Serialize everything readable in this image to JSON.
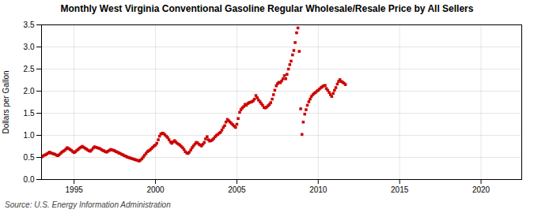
{
  "chart_data": {
    "type": "scatter",
    "title": "Monthly West Virginia Conventional Gasoline Regular Wholesale/Resale Price by All Sellers",
    "ylabel": "Dollars per Gallon",
    "source": "Source: U.S. Energy Information Administration",
    "color": "#cc0000",
    "marker": "square",
    "grid": true,
    "xlim": [
      1993.0,
      2022.5
    ],
    "ylim": [
      0.0,
      3.5
    ],
    "xticks": [
      1995,
      2000,
      2005,
      2010,
      2015,
      2020
    ],
    "yticks": [
      {
        "value": 0.0,
        "label": "0.0"
      },
      0.5,
      {
        "value": 1.0,
        "label": "1.0"
      },
      1.5,
      {
        "value": 2.0,
        "label": "2.0"
      },
      2.5,
      {
        "value": 3.0,
        "label": "3.0"
      },
      3.5
    ],
    "x": [
      1993.0,
      1993.08,
      1993.17,
      1993.25,
      1993.33,
      1993.42,
      1993.5,
      1993.58,
      1993.67,
      1993.75,
      1993.83,
      1993.92,
      1994.0,
      1994.08,
      1994.17,
      1994.25,
      1994.33,
      1994.42,
      1994.5,
      1994.58,
      1994.67,
      1994.75,
      1994.83,
      1994.92,
      1995.0,
      1995.08,
      1995.17,
      1995.25,
      1995.33,
      1995.42,
      1995.5,
      1995.58,
      1995.67,
      1995.75,
      1995.83,
      1995.92,
      1996.0,
      1996.08,
      1996.17,
      1996.25,
      1996.33,
      1996.42,
      1996.5,
      1996.58,
      1996.67,
      1996.75,
      1996.83,
      1996.92,
      1997.0,
      1997.08,
      1997.17,
      1997.25,
      1997.33,
      1997.42,
      1997.5,
      1997.58,
      1997.67,
      1997.75,
      1997.83,
      1997.92,
      1998.0,
      1998.08,
      1998.17,
      1998.25,
      1998.33,
      1998.42,
      1998.5,
      1998.58,
      1998.67,
      1998.75,
      1998.83,
      1998.92,
      1999.0,
      1999.08,
      1999.17,
      1999.25,
      1999.33,
      1999.42,
      1999.5,
      1999.58,
      1999.67,
      1999.75,
      1999.83,
      1999.92,
      2000.0,
      2000.08,
      2000.17,
      2000.25,
      2000.33,
      2000.42,
      2000.5,
      2000.58,
      2000.67,
      2000.75,
      2000.83,
      2000.92,
      2001.0,
      2001.08,
      2001.17,
      2001.25,
      2001.33,
      2001.42,
      2001.5,
      2001.58,
      2001.67,
      2001.75,
      2001.83,
      2001.92,
      2002.0,
      2002.08,
      2002.17,
      2002.25,
      2002.33,
      2002.42,
      2002.5,
      2002.58,
      2002.67,
      2002.75,
      2002.83,
      2002.92,
      2003.0,
      2003.08,
      2003.17,
      2003.25,
      2003.33,
      2003.42,
      2003.5,
      2003.58,
      2003.67,
      2003.75,
      2003.83,
      2003.92,
      2004.0,
      2004.08,
      2004.17,
      2004.25,
      2004.33,
      2004.42,
      2004.5,
      2004.58,
      2004.67,
      2004.75,
      2004.83,
      2004.92,
      2005.0,
      2005.08,
      2005.17,
      2005.25,
      2005.33,
      2005.42,
      2005.5,
      2005.58,
      2005.67,
      2005.75,
      2005.83,
      2005.92,
      2006.0,
      2006.08,
      2006.17,
      2006.25,
      2006.33,
      2006.42,
      2006.5,
      2006.58,
      2006.67,
      2006.75,
      2006.83,
      2006.92,
      2007.0,
      2007.08,
      2007.17,
      2007.25,
      2007.33,
      2007.42,
      2007.5,
      2007.58,
      2007.67,
      2007.75,
      2007.83,
      2007.92,
      2008.0,
      2008.08,
      2008.17,
      2008.25,
      2008.33,
      2008.42,
      2008.5,
      2008.58,
      2008.67,
      2008.75,
      2008.83,
      2008.92,
      2009.0,
      2009.08,
      2009.17,
      2009.25,
      2009.33,
      2009.42,
      2009.5,
      2009.58,
      2009.67,
      2009.75,
      2009.83,
      2009.92,
      2010.0,
      2010.08,
      2010.17,
      2010.25,
      2010.33,
      2010.42,
      2010.5,
      2010.58,
      2010.67,
      2010.75,
      2010.83,
      2010.92,
      2011.0,
      2011.08,
      2011.17,
      2011.25,
      2011.33,
      2011.42,
      2011.5,
      2011.58,
      2011.67
    ],
    "values": [
      0.51,
      0.53,
      0.55,
      0.56,
      0.58,
      0.6,
      0.62,
      0.6,
      0.59,
      0.58,
      0.57,
      0.55,
      0.54,
      0.56,
      0.59,
      0.62,
      0.64,
      0.66,
      0.69,
      0.72,
      0.7,
      0.68,
      0.66,
      0.63,
      0.61,
      0.63,
      0.66,
      0.68,
      0.71,
      0.73,
      0.75,
      0.73,
      0.71,
      0.69,
      0.67,
      0.65,
      0.64,
      0.67,
      0.71,
      0.74,
      0.73,
      0.72,
      0.71,
      0.7,
      0.68,
      0.66,
      0.65,
      0.63,
      0.62,
      0.64,
      0.66,
      0.68,
      0.67,
      0.66,
      0.65,
      0.63,
      0.62,
      0.6,
      0.59,
      0.57,
      0.56,
      0.54,
      0.53,
      0.51,
      0.5,
      0.49,
      0.48,
      0.47,
      0.46,
      0.45,
      0.44,
      0.43,
      0.42,
      0.44,
      0.47,
      0.51,
      0.55,
      0.59,
      0.63,
      0.65,
      0.67,
      0.7,
      0.73,
      0.76,
      0.78,
      0.82,
      0.9,
      0.98,
      1.03,
      1.05,
      1.04,
      1.01,
      0.98,
      0.95,
      0.9,
      0.85,
      0.82,
      0.85,
      0.88,
      0.85,
      0.82,
      0.8,
      0.78,
      0.75,
      0.72,
      0.68,
      0.63,
      0.6,
      0.59,
      0.62,
      0.67,
      0.72,
      0.76,
      0.8,
      0.84,
      0.83,
      0.8,
      0.78,
      0.76,
      0.8,
      0.84,
      0.92,
      0.97,
      0.9,
      0.87,
      0.88,
      0.9,
      0.93,
      0.97,
      1.0,
      1.02,
      1.05,
      1.07,
      1.12,
      1.18,
      1.22,
      1.3,
      1.36,
      1.33,
      1.3,
      1.27,
      1.24,
      1.21,
      1.18,
      1.25,
      1.38,
      1.52,
      1.58,
      1.62,
      1.65,
      1.7,
      1.68,
      1.72,
      1.74,
      1.75,
      1.76,
      1.78,
      1.82,
      1.9,
      1.85,
      1.8,
      1.76,
      1.72,
      1.68,
      1.63,
      1.62,
      1.64,
      1.67,
      1.7,
      1.74,
      1.82,
      1.92,
      2.02,
      2.12,
      2.17,
      2.2,
      2.19,
      2.23,
      2.28,
      2.35,
      2.28,
      2.38,
      2.5,
      2.6,
      2.68,
      2.82,
      2.92,
      3.1,
      3.32,
      3.43,
      2.9,
      1.6,
      1.02,
      1.3,
      1.48,
      1.58,
      1.68,
      1.76,
      1.82,
      1.88,
      1.92,
      1.95,
      1.97,
      2.0,
      2.02,
      2.05,
      2.08,
      2.1,
      2.12,
      2.13,
      2.06,
      2.02,
      1.97,
      1.92,
      1.88,
      1.95,
      2.02,
      2.08,
      2.16,
      2.22,
      2.26,
      2.22,
      2.2,
      2.18,
      2.15
    ]
  }
}
